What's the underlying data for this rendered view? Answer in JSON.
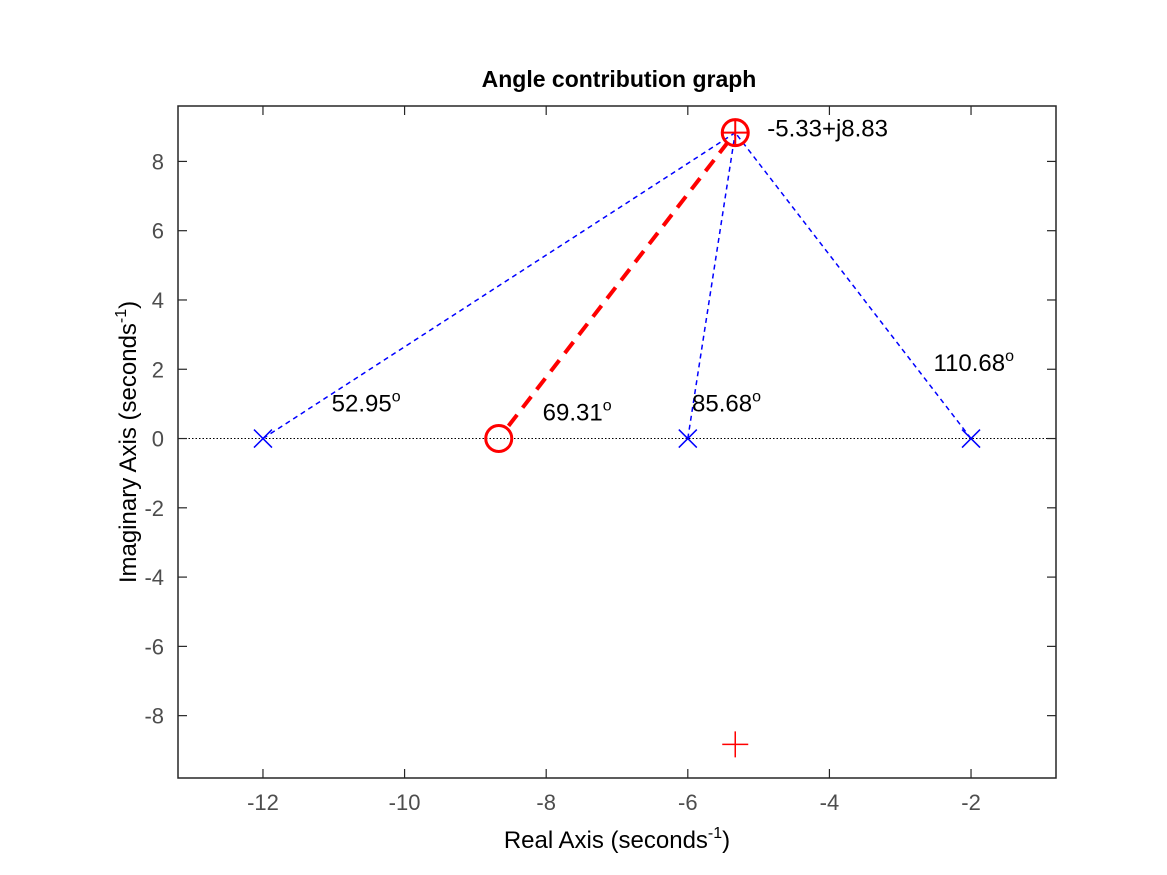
{
  "chart_data": {
    "type": "scatter",
    "title": "Angle contribution graph",
    "xlabel": {
      "text": "Real Axis (seconds",
      "sup": "-1",
      "tail": ")"
    },
    "ylabel": {
      "text": "Imaginary Axis (seconds",
      "sup": "-1",
      "tail": ")"
    },
    "xlim": [
      -13.2,
      -0.8
    ],
    "ylim": [
      -9.8,
      9.6
    ],
    "x_ticks": [
      -12,
      -10,
      -8,
      -6,
      -4,
      -2
    ],
    "x_tick_labels": [
      "-12",
      "-10",
      "-8",
      "-6",
      "-4",
      "-2"
    ],
    "y_ticks": [
      -8,
      -6,
      -4,
      -2,
      0,
      2,
      4,
      6,
      8
    ],
    "y_tick_labels": [
      "-8",
      "-6",
      "-4",
      "-2",
      "0",
      "2",
      "4",
      "6",
      "8"
    ],
    "grid": false,
    "poles": [
      {
        "x": -12,
        "y": 0
      },
      {
        "x": -6,
        "y": 0
      },
      {
        "x": -2,
        "y": 0
      }
    ],
    "zero": {
      "x": -8.67,
      "y": 0
    },
    "test_point": {
      "x": -5.33,
      "y": 8.83,
      "label": "-5.33+j8.83"
    },
    "conjugate_point": {
      "x": -5.33,
      "y": -8.83
    },
    "angles": [
      {
        "value": "52.95",
        "unit": "o",
        "x": -11.03,
        "y": 0.78
      },
      {
        "value": "69.31",
        "unit": "o",
        "x": -8.05,
        "y": 0.52
      },
      {
        "value": "85.68",
        "unit": "o",
        "x": -5.94,
        "y": 0.78
      },
      {
        "value": "110.68",
        "unit": "o",
        "x": -2.53,
        "y": 1.95
      }
    ],
    "colors": {
      "pole": "#0000ff",
      "zero": "#ff0000",
      "test_point": "#ff0000",
      "pole_lines": "#0000ff",
      "zero_line": "#ff0000",
      "real_axis_line": "#000000",
      "axes": "#262626",
      "ticks_text": "#4d4d4d"
    }
  }
}
